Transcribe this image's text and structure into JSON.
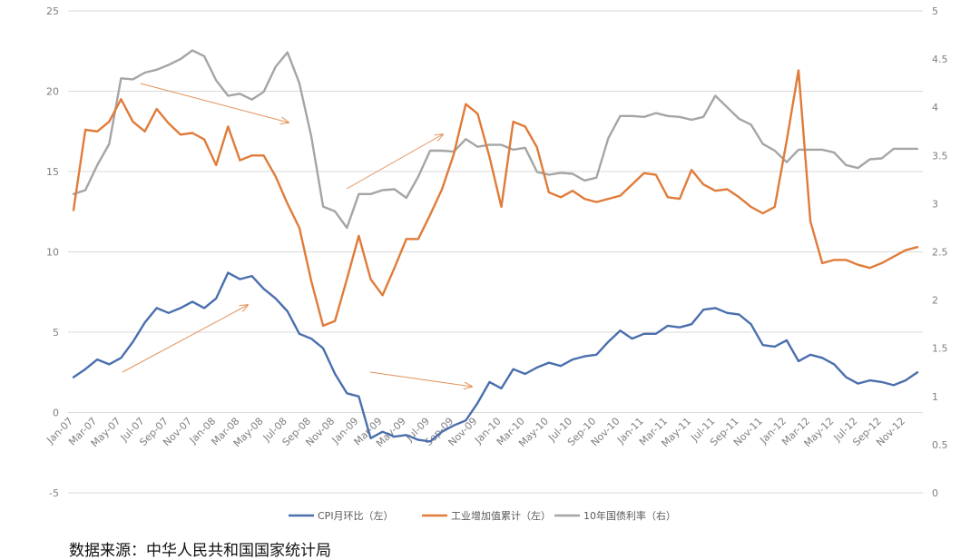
{
  "chart_data": {
    "type": "line",
    "x": [
      "Jan-07",
      "Feb-07",
      "Mar-07",
      "Apr-07",
      "May-07",
      "Jun-07",
      "Jul-07",
      "Aug-07",
      "Sep-07",
      "Oct-07",
      "Nov-07",
      "Dec-07",
      "Jan-08",
      "Feb-08",
      "Mar-08",
      "Apr-08",
      "May-08",
      "Jun-08",
      "Jul-08",
      "Aug-08",
      "Sep-08",
      "Oct-08",
      "Nov-08",
      "Dec-08",
      "Jan-09",
      "Feb-09",
      "Mar-09",
      "Apr-09",
      "May-09",
      "Jun-09",
      "Jul-09",
      "Aug-09",
      "Sep-09",
      "Oct-09",
      "Nov-09",
      "Dec-09",
      "Jan-10",
      "Feb-10",
      "Mar-10",
      "Apr-10",
      "May-10",
      "Jun-10",
      "Jul-10",
      "Aug-10",
      "Sep-10",
      "Oct-10",
      "Nov-10",
      "Dec-10",
      "Jan-11",
      "Feb-11",
      "Mar-11",
      "Apr-11",
      "May-11",
      "Jun-11",
      "Jul-11",
      "Aug-11",
      "Sep-11",
      "Oct-11",
      "Nov-11",
      "Dec-11",
      "Jan-12",
      "Feb-12",
      "Mar-12",
      "Apr-12",
      "May-12",
      "Jun-12",
      "Jul-12",
      "Aug-12",
      "Sep-12",
      "Oct-12",
      "Nov-12",
      "Dec-12"
    ],
    "x_tick_labels": [
      "Jan-07",
      "Mar-07",
      "May-07",
      "Jul-07",
      "Sep-07",
      "Nov-07",
      "Jan-08",
      "Mar-08",
      "May-08",
      "Jul-08",
      "Sep-08",
      "Nov-08",
      "Jan-09",
      "Mar-09",
      "May-09",
      "Jul-09",
      "Sep-09",
      "Nov-09",
      "Jan-10",
      "Mar-10",
      "May-10",
      "Jul-10",
      "Sep-10",
      "Nov-10",
      "Jan-11",
      "Mar-11",
      "May-11",
      "Jul-11",
      "Sep-11",
      "Nov-11",
      "Jan-12",
      "Mar-12",
      "May-12",
      "Jul-12",
      "Sep-12",
      "Nov-12"
    ],
    "y_left_ticks": [
      "25",
      "20",
      "15",
      "10",
      "5",
      "0",
      "-5"
    ],
    "y_right_ticks": [
      "5",
      "4.5",
      "4",
      "3.5",
      "3",
      "2.5",
      "2",
      "1.5",
      "1",
      "0.5",
      "0"
    ],
    "ylim_left": [
      -5,
      25
    ],
    "ylim_right": [
      0,
      5
    ],
    "grid": true,
    "legend_position": "bottom",
    "series": [
      {
        "name": "CPI月环比（左）",
        "axis": "left",
        "color": "#4a6fae",
        "values": [
          2.2,
          2.7,
          3.3,
          3.0,
          3.4,
          4.4,
          5.6,
          6.5,
          6.2,
          6.5,
          6.9,
          6.5,
          7.1,
          8.7,
          8.3,
          8.5,
          7.7,
          7.1,
          6.3,
          4.9,
          4.6,
          4.0,
          2.4,
          1.2,
          1.0,
          -1.6,
          -1.2,
          -1.5,
          -1.4,
          -1.7,
          -1.8,
          -1.2,
          -0.8,
          -0.5,
          0.6,
          1.9,
          1.5,
          2.7,
          2.4,
          2.8,
          3.1,
          2.9,
          3.3,
          3.5,
          3.6,
          4.4,
          5.1,
          4.6,
          4.9,
          4.9,
          5.4,
          5.3,
          5.5,
          6.4,
          6.5,
          6.2,
          6.1,
          5.5,
          4.2,
          4.1,
          4.5,
          3.2,
          3.6,
          3.4,
          3.0,
          2.2,
          1.8,
          2.0,
          1.9,
          1.7,
          2.0,
          2.5
        ]
      },
      {
        "name": "工业增加值累计（左）",
        "axis": "left",
        "color": "#e07b39",
        "values": [
          12.6,
          17.6,
          17.5,
          18.1,
          19.5,
          18.1,
          17.5,
          18.9,
          18.0,
          17.3,
          17.4,
          17.0,
          15.4,
          17.8,
          15.7,
          16.0,
          16.0,
          14.7,
          13.0,
          11.5,
          8.2,
          5.4,
          5.7,
          8.3,
          11.0,
          8.3,
          7.3,
          9.0,
          10.8,
          10.8,
          12.3,
          13.9,
          16.1,
          19.2,
          18.6,
          15.9,
          12.8,
          18.1,
          17.8,
          16.5,
          13.7,
          13.4,
          13.8,
          13.3,
          13.1,
          13.3,
          13.5,
          14.2,
          14.9,
          14.8,
          13.4,
          13.3,
          15.1,
          14.2,
          13.8,
          13.9,
          13.4,
          12.8,
          12.4,
          12.8,
          16.9,
          21.3,
          11.9,
          9.3,
          9.5,
          9.5,
          9.2,
          9.0,
          9.3,
          9.7,
          10.1,
          10.3
        ]
      },
      {
        "name": "10年国债利率（右）",
        "axis": "right",
        "color": "#a5a5a5",
        "values": [
          3.1,
          3.14,
          3.4,
          3.62,
          4.3,
          4.29,
          4.36,
          4.39,
          4.44,
          4.5,
          4.59,
          4.53,
          4.28,
          4.12,
          4.14,
          4.08,
          4.16,
          4.42,
          4.57,
          4.25,
          3.7,
          2.97,
          2.92,
          2.75,
          3.1,
          3.1,
          3.14,
          3.15,
          3.06,
          3.28,
          3.55,
          3.55,
          3.54,
          3.67,
          3.59,
          3.61,
          3.61,
          3.56,
          3.58,
          3.33,
          3.3,
          3.32,
          3.31,
          3.24,
          3.27,
          3.68,
          3.91,
          3.91,
          3.9,
          3.94,
          3.91,
          3.9,
          3.87,
          3.9,
          4.12,
          4.0,
          3.88,
          3.82,
          3.62,
          3.55,
          3.43,
          3.56,
          3.56,
          3.56,
          3.53,
          3.4,
          3.37,
          3.46,
          3.47,
          3.57,
          3.57,
          3.57
        ]
      }
    ],
    "annotations": [
      "arrow",
      "arrow",
      "arrow",
      "arrow",
      "arrow"
    ]
  },
  "source_text": "数据来源：中华人民共和国国家统计局"
}
